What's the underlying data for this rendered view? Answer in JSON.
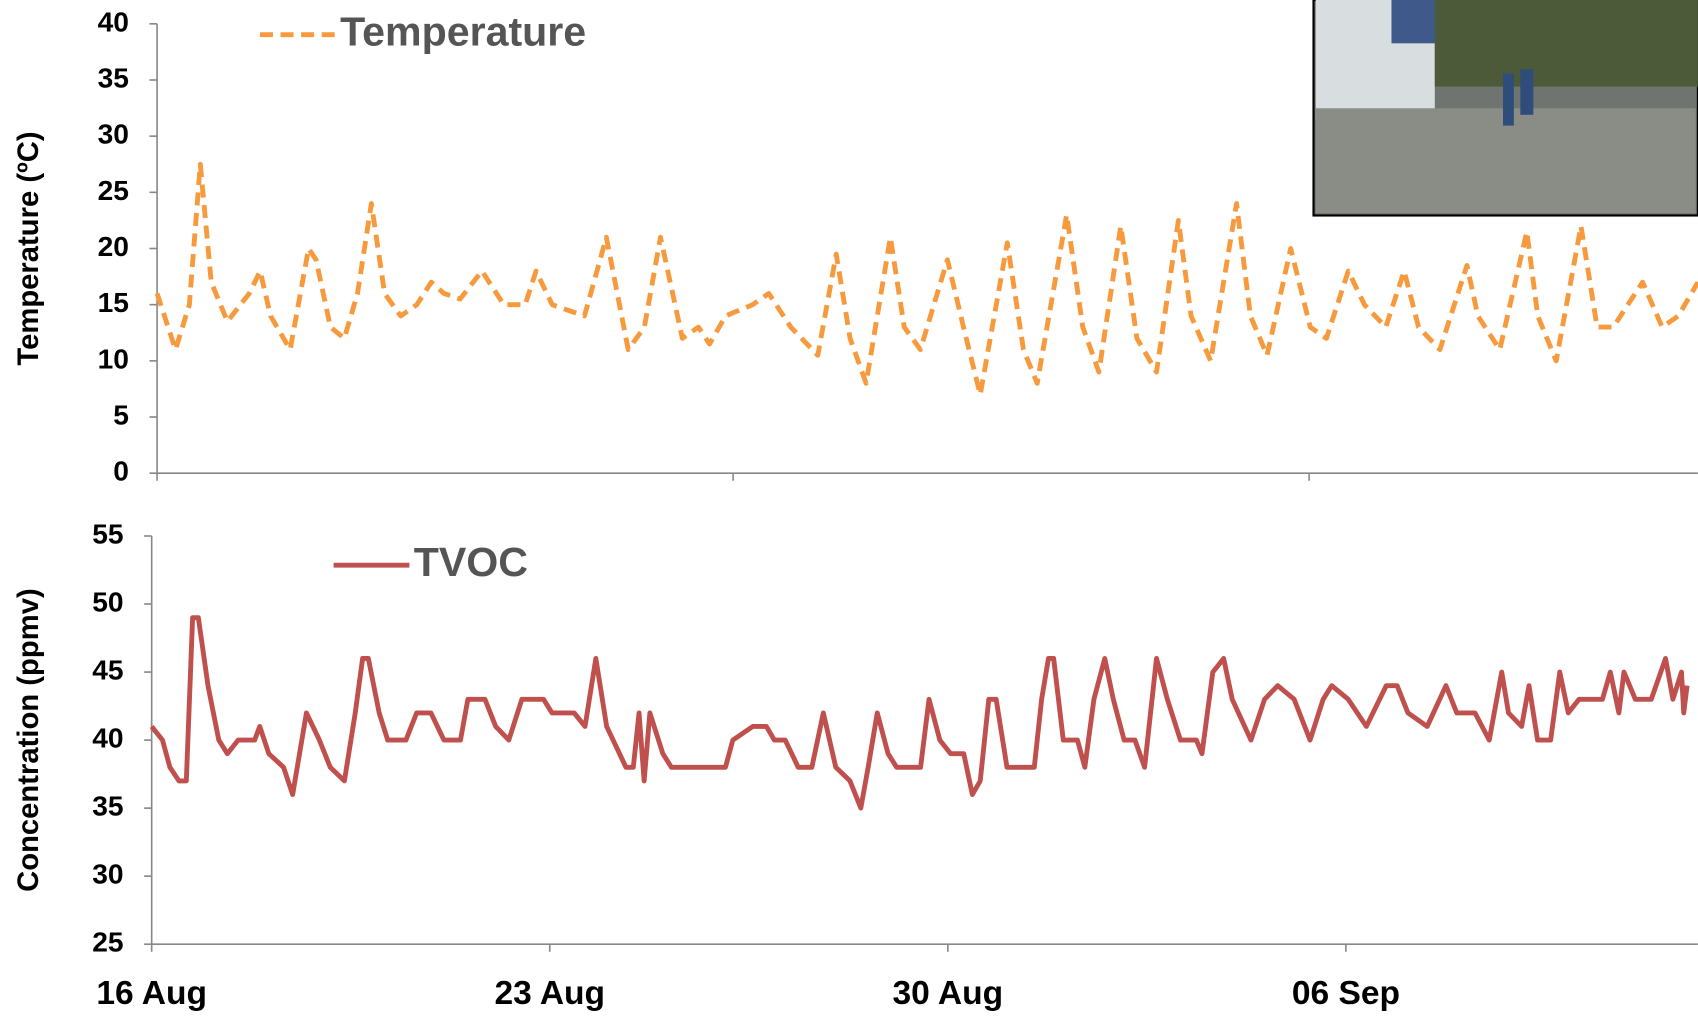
{
  "chart_data": [
    {
      "type": "line",
      "ylabel": "Temperature (ºC)",
      "x": [
        0,
        0.32,
        0.56,
        0.75,
        0.94,
        1.22,
        1.6,
        1.79,
        1.97,
        2.31,
        2.63,
        2.76,
        3.01,
        3.25,
        3.48,
        3.72,
        3.95,
        4.23,
        4.51,
        4.76,
        4.98,
        5.26,
        5.64,
        6.02,
        6.39,
        6.58,
        6.86,
        7.42,
        7.8,
        8.18,
        8.46,
        8.74,
        9.12,
        9.4,
        9.59,
        9.87,
        10.34,
        10.62,
        11,
        11.47,
        11.79,
        12.03,
        12.31,
        12.73,
        12.97,
        13.25,
        13.72,
        14,
        14.29,
        14.76,
        15.04,
        15.28,
        15.79,
        16.07,
        16.35,
        16.73,
        17.01,
        17.35,
        17.73,
        17.95,
        18.29,
        18.74,
        18.98,
        19.27,
        19.68,
        20.02,
        20.3,
        20.68,
        20.96,
        21.33,
        21.65,
        21.9,
        22.27,
        22.74,
        22.93,
        23.31,
        23.78,
        23.97,
        24.29,
        24.72,
        25,
        25.28,
        25.79,
        26.13,
        26.41,
        26.75
      ],
      "series": [
        {
          "name": "Temperature",
          "color": "#f79a3e",
          "line_style": "dashed",
          "values": [
            16,
            11,
            15,
            27.5,
            17,
            13.5,
            16,
            18,
            14,
            11,
            20,
            19,
            13,
            12,
            16,
            24,
            16,
            14,
            15,
            17,
            16,
            15.5,
            18,
            15,
            15,
            18,
            15,
            14,
            21,
            11,
            13,
            21,
            12,
            13,
            11.5,
            14,
            15,
            16,
            13,
            10.5,
            19.5,
            12,
            8,
            21,
            13,
            11,
            19,
            13,
            7,
            20.5,
            11,
            8,
            23,
            13,
            9,
            22,
            12,
            9,
            22.5,
            14,
            10,
            24,
            14,
            10.5,
            20,
            13,
            12,
            18,
            15,
            13,
            18,
            13,
            11,
            18.5,
            14,
            11,
            21.5,
            14,
            10,
            22,
            13,
            13,
            17,
            13,
            14,
            17
          ]
        }
      ],
      "xlim": [
        0,
        26.75
      ],
      "xticks": [
        0,
        10,
        20
      ],
      "xtick_labels": false,
      "ylim": [
        0,
        40
      ],
      "yticks": [
        0,
        5,
        10,
        15,
        20,
        25,
        30,
        35,
        40
      ]
    },
    {
      "type": "line",
      "ylabel": "Concentration (ppmv)",
      "x": [
        0,
        0.19,
        0.32,
        0.48,
        0.61,
        0.72,
        0.82,
        0.99,
        1.18,
        1.33,
        1.52,
        1.81,
        1.9,
        2.06,
        2.32,
        2.48,
        2.72,
        2.95,
        3.14,
        3.39,
        3.58,
        3.71,
        3.81,
        4,
        4.15,
        4.47,
        4.66,
        4.91,
        5.14,
        5.43,
        5.56,
        5.86,
        6.05,
        6.28,
        6.51,
        6.89,
        7.04,
        7.43,
        7.62,
        7.81,
        8,
        8.34,
        8.47,
        8.57,
        8.66,
        8.76,
        8.99,
        9.14,
        10.09,
        10.22,
        10.57,
        10.81,
        10.95,
        11.14,
        11.37,
        11.61,
        11.81,
        12.03,
        12.28,
        12.47,
        12.6,
        12.76,
        12.95,
        13.1,
        13.52,
        13.67,
        13.86,
        14.05,
        14.28,
        14.43,
        14.57,
        14.72,
        14.85,
        15.04,
        15.52,
        15.65,
        15.77,
        15.86,
        16.03,
        16.28,
        16.41,
        16.57,
        16.76,
        16.91,
        17.1,
        17.29,
        17.46,
        17.67,
        17.86,
        18.09,
        18.37,
        18.47,
        18.66,
        18.85,
        19,
        19.33,
        19.57,
        19.8,
        20.09,
        20.37,
        20.6,
        20.75,
        21.04,
        21.36,
        21.71,
        21.9,
        22.09,
        22.43,
        22.76,
        22.95,
        23.27,
        23.52,
        23.74,
        23.86,
        24.09,
        24.22,
        24.37,
        24.6,
        24.76,
        24.91,
        25.1,
        25.51,
        25.65,
        25.8,
        25.89,
        26.09,
        26.37,
        26.62,
        26.75,
        26.9,
        26.94,
        27
      ],
      "series": [
        {
          "name": "TVOC",
          "color": "#c0504d",
          "line_style": "solid",
          "values": [
            41,
            40,
            38,
            37,
            37,
            49,
            49,
            44,
            40,
            39,
            40,
            40,
            41,
            39,
            38,
            36,
            42,
            40,
            38,
            37,
            42,
            46,
            46,
            42,
            40,
            40,
            42,
            42,
            40,
            40,
            43,
            43,
            41,
            40,
            43,
            43,
            42,
            42,
            41,
            46,
            41,
            38,
            38,
            42,
            37,
            42,
            39,
            38,
            38,
            40,
            41,
            41,
            40,
            40,
            38,
            38,
            42,
            38,
            37,
            35,
            38,
            42,
            39,
            38,
            38,
            43,
            40,
            39,
            39,
            36,
            37,
            43,
            43,
            38,
            38,
            43,
            46,
            46,
            40,
            40,
            38,
            43,
            46,
            43,
            40,
            40,
            38,
            46,
            43,
            40,
            40,
            39,
            45,
            46,
            43,
            40,
            43,
            44,
            43,
            40,
            43,
            44,
            43,
            41,
            44,
            44,
            42,
            41,
            44,
            42,
            42,
            40,
            45,
            42,
            41,
            44,
            40,
            40,
            45,
            42,
            43,
            43,
            45,
            42,
            45,
            43,
            43,
            46,
            43,
            45,
            42,
            44
          ]
        }
      ],
      "xlim": [
        0,
        27.19
      ],
      "xticks": [
        {
          "value": 0,
          "label": "16 Aug"
        },
        {
          "value": 7,
          "label": "23 Aug"
        },
        {
          "value": 14,
          "label": "30 Aug"
        },
        {
          "value": 21,
          "label": "06 Sep"
        }
      ],
      "xtick_labels": true,
      "ylim": [
        25,
        55
      ],
      "yticks": [
        25,
        30,
        35,
        40,
        45,
        50,
        55
      ]
    }
  ]
}
